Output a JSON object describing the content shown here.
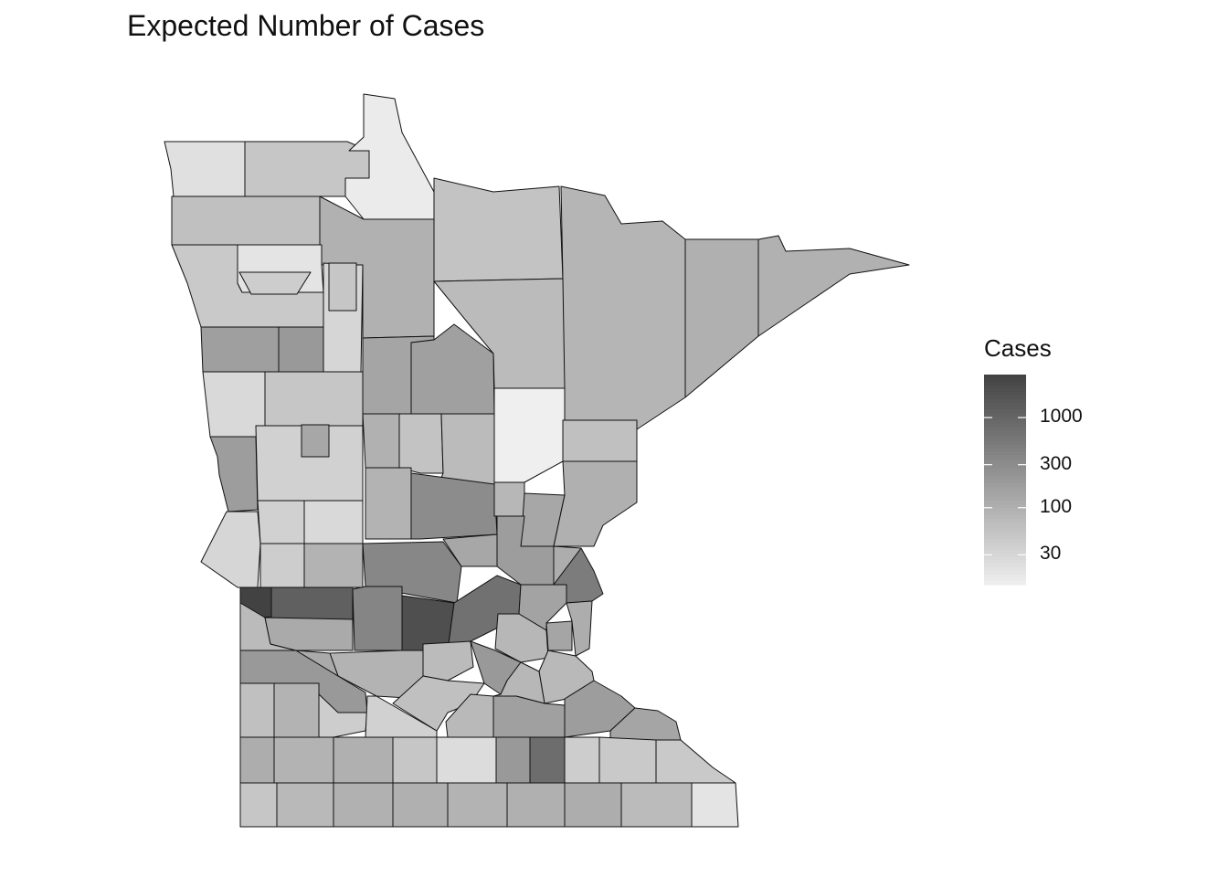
{
  "title": "Expected Number of Cases",
  "legend": {
    "title": "Cases",
    "scale": "log",
    "breaks": [
      {
        "label": "1000",
        "value": 1000
      },
      {
        "label": "300",
        "value": 300
      },
      {
        "label": "100",
        "value": 100
      },
      {
        "label": "30",
        "value": 30
      }
    ],
    "range": [
      14,
      3000
    ],
    "color_low": "#efefef",
    "color_high": "#424242"
  },
  "colors": {
    "border": "#111111",
    "background": "#ffffff"
  },
  "regions_expected_cases": [
    22,
    50,
    16,
    60,
    95,
    55,
    85,
    100,
    95,
    45,
    20,
    40,
    30,
    170,
    200,
    70,
    28,
    50,
    140,
    160,
    14,
    60,
    180,
    35,
    95,
    55,
    70,
    30,
    35,
    28,
    90,
    300,
    80,
    130,
    100,
    40,
    90,
    350,
    130,
    180,
    110,
    500,
    380,
    3000,
    1200,
    2000,
    700,
    150,
    110,
    80,
    140,
    70,
    120,
    90,
    70,
    200,
    75,
    80,
    200,
    120,
    60,
    90,
    40,
    35,
    60,
    75,
    160,
    180,
    140,
    110,
    90,
    100,
    50,
    25,
    200,
    800,
    40,
    45,
    45,
    50,
    75,
    95,
    100,
    90,
    100,
    110,
    70,
    20,
    50,
    130
  ]
}
